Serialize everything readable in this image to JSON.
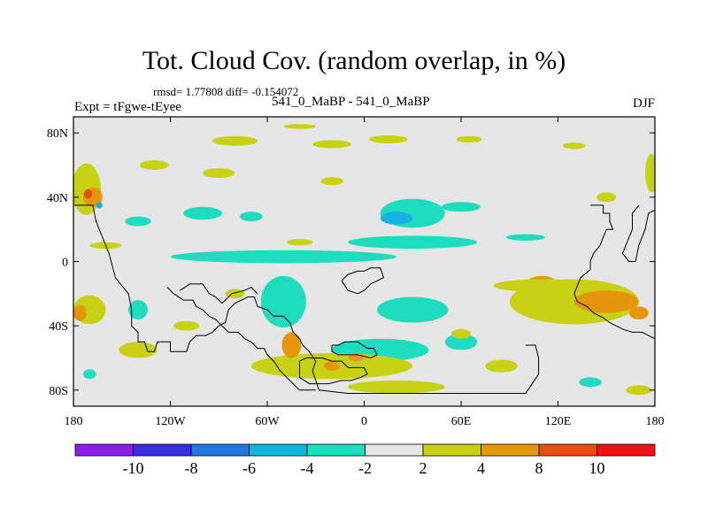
{
  "chart_data": {
    "type": "heatmap",
    "title": "Tot. Cloud Cov. (random overlap, in %)",
    "stats_text": "rmsd= 1.77808  diff= -0.154072",
    "left_label": "Expt = tFgwe-tEyee",
    "center_label": "541_0_MaBP - 541_0_MaBP",
    "right_label": "DJF",
    "x_axis": {
      "range": [
        -180,
        180
      ],
      "ticks": [
        {
          "value": -180,
          "label": "180"
        },
        {
          "value": -120,
          "label": "120W"
        },
        {
          "value": -60,
          "label": "60W"
        },
        {
          "value": 0,
          "label": "0"
        },
        {
          "value": 60,
          "label": "60E"
        },
        {
          "value": 120,
          "label": "120E"
        },
        {
          "value": 180,
          "label": "180"
        }
      ]
    },
    "y_axis": {
      "range": [
        -90,
        90
      ],
      "ticks": [
        {
          "value": 80,
          "label": "80N"
        },
        {
          "value": 40,
          "label": "40N"
        },
        {
          "value": 0,
          "label": "0"
        },
        {
          "value": -40,
          "label": "40S"
        },
        {
          "value": -80,
          "label": "80S"
        }
      ]
    },
    "colorbar": {
      "levels": [
        "-10",
        "-8",
        "-6",
        "-4",
        "-2",
        "2",
        "4",
        "8",
        "10"
      ],
      "colors": [
        "#8a1ee8",
        "#3a2ce0",
        "#1f78e0",
        "#14b2e0",
        "#1edcbe",
        "#e6e6e6",
        "#c8d214",
        "#e6960a",
        "#e6500a",
        "#e61414"
      ]
    },
    "background_color": "#e6e6e6",
    "regions": [
      {
        "name": "north-band-1",
        "color": "#c8d214",
        "cx": -80,
        "cy": 75,
        "rx": 14,
        "ry": 3
      },
      {
        "name": "north-band-2",
        "color": "#c8d214",
        "cx": -20,
        "cy": 73,
        "rx": 12,
        "ry": 2.5
      },
      {
        "name": "north-band-3",
        "color": "#c8d214",
        "cx": 15,
        "cy": 76,
        "rx": 12,
        "ry": 2.5
      },
      {
        "name": "north-band-4",
        "color": "#c8d214",
        "cx": 65,
        "cy": 76,
        "rx": 8,
        "ry": 2
      },
      {
        "name": "north-band-5",
        "color": "#c8d214",
        "cx": 130,
        "cy": 72,
        "rx": 7,
        "ry": 2
      },
      {
        "name": "north-band-6",
        "color": "#c8d214",
        "cx": -40,
        "cy": 84,
        "rx": 10,
        "ry": 1.5
      },
      {
        "name": "nw-pacific-yellow",
        "color": "#c8d214",
        "cx": -172,
        "cy": 45,
        "rx": 9,
        "ry": 16
      },
      {
        "name": "nw-pacific-orange",
        "color": "#e6960a",
        "cx": -168,
        "cy": 40,
        "rx": 6,
        "ry": 6
      },
      {
        "name": "nw-pacific-red",
        "color": "#e6500a",
        "cx": -171,
        "cy": 42,
        "rx": 2.5,
        "ry": 3
      },
      {
        "name": "nw-pacific-blue",
        "color": "#14b2e0",
        "cx": -164,
        "cy": 35,
        "rx": 2,
        "ry": 2
      },
      {
        "name": "far-right-yellow",
        "color": "#c8d214",
        "cx": 178,
        "cy": 55,
        "rx": 4,
        "ry": 12
      },
      {
        "name": "yellow-60n",
        "color": "#c8d214",
        "cx": -130,
        "cy": 60,
        "rx": 9,
        "ry": 3
      },
      {
        "name": "yellow-55n",
        "color": "#c8d214",
        "cx": -90,
        "cy": 55,
        "rx": 10,
        "ry": 3
      },
      {
        "name": "yellow-50n",
        "color": "#c8d214",
        "cx": -20,
        "cy": 50,
        "rx": 7,
        "ry": 2.5
      },
      {
        "name": "yellow-40n",
        "color": "#c8d214",
        "cx": 150,
        "cy": 40,
        "rx": 6,
        "ry": 3
      },
      {
        "name": "cyan-north-pacific-1",
        "color": "#1edcbe",
        "cx": -100,
        "cy": 30,
        "rx": 12,
        "ry": 4
      },
      {
        "name": "cyan-north-pacific-2",
        "color": "#1edcbe",
        "cx": -70,
        "cy": 28,
        "rx": 7,
        "ry": 3
      },
      {
        "name": "cyan-north-pacific-3",
        "color": "#1edcbe",
        "cx": -140,
        "cy": 25,
        "rx": 8,
        "ry": 3
      },
      {
        "name": "cyan-atlantic",
        "color": "#1edcbe",
        "cx": 30,
        "cy": 30,
        "rx": 20,
        "ry": 9
      },
      {
        "name": "blue-atlantic",
        "color": "#14b2e0",
        "cx": 20,
        "cy": 27,
        "rx": 10,
        "ry": 4
      },
      {
        "name": "cyan-atlantic-east",
        "color": "#1edcbe",
        "cx": 60,
        "cy": 34,
        "rx": 12,
        "ry": 3
      },
      {
        "name": "cyan-equator-1",
        "color": "#1edcbe",
        "cx": -50,
        "cy": 3,
        "rx": 70,
        "ry": 4
      },
      {
        "name": "cyan-equator-2",
        "color": "#1edcbe",
        "cx": 30,
        "cy": 12,
        "rx": 40,
        "ry": 4
      },
      {
        "name": "cyan-equator-3",
        "color": "#1edcbe",
        "cx": 100,
        "cy": 15,
        "rx": 12,
        "ry": 2
      },
      {
        "name": "yellow-equator-west",
        "color": "#c8d214",
        "cx": -160,
        "cy": 10,
        "rx": 10,
        "ry": 2
      },
      {
        "name": "yellow-equator-mid",
        "color": "#c8d214",
        "cx": -40,
        "cy": 12,
        "rx": 8,
        "ry": 2
      },
      {
        "name": "cyan-sa",
        "color": "#1edcbe",
        "cx": -50,
        "cy": -25,
        "rx": 14,
        "ry": 16
      },
      {
        "name": "cyan-safrica",
        "color": "#1edcbe",
        "cx": 30,
        "cy": -30,
        "rx": 22,
        "ry": 8
      },
      {
        "name": "cyan-south-atlantic",
        "color": "#1edcbe",
        "cx": 10,
        "cy": -55,
        "rx": 30,
        "ry": 7
      },
      {
        "name": "cyan-south-1",
        "color": "#1edcbe",
        "cx": -140,
        "cy": -30,
        "rx": 6,
        "ry": 6
      },
      {
        "name": "cyan-south-2",
        "color": "#1edcbe",
        "cx": 60,
        "cy": -50,
        "rx": 10,
        "ry": 5
      },
      {
        "name": "cyan-south-3",
        "color": "#1edcbe",
        "cx": 140,
        "cy": -75,
        "rx": 7,
        "ry": 3
      },
      {
        "name": "cyan-south-4",
        "color": "#1edcbe",
        "cx": -170,
        "cy": -70,
        "rx": 4,
        "ry": 3
      },
      {
        "name": "yellow-south-pacific",
        "color": "#c8d214",
        "cx": -140,
        "cy": -55,
        "rx": 12,
        "ry": 5
      },
      {
        "name": "yellow-south-ocean",
        "color": "#c8d214",
        "cx": -20,
        "cy": -65,
        "rx": 50,
        "ry": 8
      },
      {
        "name": "orange-south-ocean-1",
        "color": "#e6960a",
        "cx": -45,
        "cy": -52,
        "rx": 6,
        "ry": 8
      },
      {
        "name": "orange-south-ocean-2",
        "color": "#e6960a",
        "cx": -20,
        "cy": -65,
        "rx": 5,
        "ry": 3
      },
      {
        "name": "orange-south-ocean-3",
        "color": "#e6960a",
        "cx": -5,
        "cy": -60,
        "rx": 5,
        "ry": 2
      },
      {
        "name": "yellow-far-south",
        "color": "#c8d214",
        "cx": 20,
        "cy": -78,
        "rx": 30,
        "ry": 4
      },
      {
        "name": "yellow-sw-edge",
        "color": "#c8d214",
        "cx": -170,
        "cy": -30,
        "rx": 10,
        "ry": 9
      },
      {
        "name": "orange-sw-edge",
        "color": "#e6960a",
        "cx": -176,
        "cy": -32,
        "rx": 4,
        "ry": 5
      },
      {
        "name": "yellow-se-indian",
        "color": "#c8d214",
        "cx": 130,
        "cy": -25,
        "rx": 40,
        "ry": 14
      },
      {
        "name": "orange-se-indian-1",
        "color": "#e6960a",
        "cx": 150,
        "cy": -25,
        "rx": 20,
        "ry": 7
      },
      {
        "name": "orange-se-indian-2",
        "color": "#e6960a",
        "cx": 110,
        "cy": -12,
        "rx": 8,
        "ry": 3
      },
      {
        "name": "orange-se-indian-3",
        "color": "#e6960a",
        "cx": 170,
        "cy": -32,
        "rx": 6,
        "ry": 4
      },
      {
        "name": "yellow-east-band",
        "color": "#c8d214",
        "cx": 110,
        "cy": -15,
        "rx": 30,
        "ry": 4
      },
      {
        "name": "yellow-bottom-right",
        "color": "#c8d214",
        "cx": 170,
        "cy": -80,
        "rx": 8,
        "ry": 3
      },
      {
        "name": "yellow-indian-1",
        "color": "#c8d214",
        "cx": 85,
        "cy": -65,
        "rx": 10,
        "ry": 4
      },
      {
        "name": "yellow-indian-2",
        "color": "#c8d214",
        "cx": 60,
        "cy": -45,
        "rx": 6,
        "ry": 3
      },
      {
        "name": "yellow-pacific-south-1",
        "color": "#c8d214",
        "cx": -110,
        "cy": -40,
        "rx": 8,
        "ry": 3
      },
      {
        "name": "yellow-pacific-south-2",
        "color": "#c8d214",
        "cx": -80,
        "cy": -20,
        "rx": 6,
        "ry": 3
      }
    ],
    "coastlines": [
      {
        "name": "north-america-coast",
        "points": [
          [
            -180,
            35
          ],
          [
            -168,
            35
          ],
          [
            -166,
            25
          ],
          [
            -160,
            10
          ],
          [
            -158,
            5
          ],
          [
            -154,
            -10
          ],
          [
            -146,
            -20
          ],
          [
            -144,
            -30
          ],
          [
            -144,
            -40
          ],
          [
            -140,
            -44
          ],
          [
            -140,
            -50
          ],
          [
            -136,
            -50
          ],
          [
            -134,
            -56
          ],
          [
            -130,
            -56
          ],
          [
            -128,
            -50
          ],
          [
            -120,
            -50
          ],
          [
            -120,
            -56
          ],
          [
            -110,
            -56
          ],
          [
            -108,
            -50
          ],
          [
            -104,
            -46
          ],
          [
            -98,
            -46
          ],
          [
            -94,
            -44
          ],
          [
            -90,
            -40
          ],
          [
            -86,
            -38
          ],
          [
            -84,
            -30
          ],
          [
            -80,
            -26
          ],
          [
            -76,
            -24
          ],
          [
            -72,
            -22
          ],
          [
            -68,
            -22
          ],
          [
            -66,
            -28
          ],
          [
            -60,
            -30
          ],
          [
            -56,
            -34
          ],
          [
            -50,
            -34
          ],
          [
            -46,
            -38
          ],
          [
            -44,
            -44
          ],
          [
            -40,
            -48
          ],
          [
            -38,
            -52
          ]
        ]
      },
      {
        "name": "south-america-coast",
        "points": [
          [
            -38,
            -52
          ],
          [
            -34,
            -56
          ],
          [
            -30,
            -62
          ],
          [
            -32,
            -68
          ],
          [
            -30,
            -74
          ],
          [
            -28,
            -80
          ],
          [
            -10,
            -82
          ],
          [
            40,
            -82
          ],
          [
            80,
            -82
          ],
          [
            100,
            -82
          ],
          [
            108,
            -70
          ],
          [
            108,
            -60
          ],
          [
            106,
            -52
          ],
          [
            100,
            -52
          ]
        ]
      },
      {
        "name": "pacific-island-chain",
        "points": [
          [
            -122,
            -16
          ],
          [
            -118,
            -20
          ],
          [
            -112,
            -24
          ],
          [
            -106,
            -24
          ],
          [
            -104,
            -28
          ],
          [
            -100,
            -30
          ],
          [
            -96,
            -34
          ],
          [
            -92,
            -36
          ],
          [
            -88,
            -40
          ],
          [
            -84,
            -44
          ],
          [
            -78,
            -44
          ],
          [
            -74,
            -48
          ],
          [
            -70,
            -50
          ],
          [
            -66,
            -54
          ],
          [
            -62,
            -54
          ],
          [
            -60,
            -58
          ],
          [
            -56,
            -62
          ],
          [
            -52,
            -68
          ],
          [
            -48,
            -72
          ],
          [
            -44,
            -76
          ],
          [
            -40,
            -80
          ],
          [
            -30,
            -80
          ]
        ]
      },
      {
        "name": "inner-continent",
        "points": [
          [
            -114,
            -18
          ],
          [
            -108,
            -14
          ],
          [
            -100,
            -14
          ],
          [
            -96,
            -20
          ],
          [
            -92,
            -22
          ],
          [
            -88,
            -26
          ],
          [
            -82,
            -20
          ],
          [
            -74,
            -18
          ],
          [
            -70,
            -16
          ],
          [
            -66,
            -20
          ]
        ]
      },
      {
        "name": "antarctic-island",
        "points": [
          [
            -40,
            -62
          ],
          [
            -36,
            -60
          ],
          [
            -26,
            -60
          ],
          [
            -20,
            -62
          ],
          [
            -14,
            -62
          ],
          [
            -10,
            -66
          ],
          [
            0,
            -66
          ],
          [
            2,
            -70
          ],
          [
            -2,
            -72
          ],
          [
            -8,
            -74
          ],
          [
            -14,
            -74
          ],
          [
            -22,
            -76
          ],
          [
            -34,
            -76
          ],
          [
            -40,
            -72
          ],
          [
            -40,
            -62
          ]
        ]
      },
      {
        "name": "small-island-east",
        "points": [
          [
            -20,
            -52
          ],
          [
            -16,
            -52
          ],
          [
            -12,
            -50
          ],
          [
            -4,
            -50
          ],
          [
            2,
            -54
          ],
          [
            6,
            -54
          ],
          [
            8,
            -58
          ],
          [
            4,
            -60
          ],
          [
            -4,
            -58
          ],
          [
            -10,
            -58
          ],
          [
            -16,
            -58
          ],
          [
            -20,
            -56
          ],
          [
            -20,
            -52
          ]
        ]
      },
      {
        "name": "africa-block",
        "points": [
          [
            -14,
            -12
          ],
          [
            -10,
            -8
          ],
          [
            -4,
            -6
          ],
          [
            0,
            -6
          ],
          [
            4,
            -4
          ],
          [
            10,
            -4
          ],
          [
            12,
            -10
          ],
          [
            8,
            -12
          ],
          [
            4,
            -14
          ],
          [
            0,
            -18
          ],
          [
            -4,
            -20
          ],
          [
            -10,
            -18
          ],
          [
            -14,
            -12
          ]
        ]
      },
      {
        "name": "eastern-coast",
        "points": [
          [
            140,
            35
          ],
          [
            148,
            35
          ],
          [
            148,
            30
          ],
          [
            152,
            30
          ],
          [
            152,
            25
          ],
          [
            154,
            20
          ],
          [
            150,
            20
          ],
          [
            148,
            15
          ],
          [
            146,
            10
          ],
          [
            142,
            5
          ],
          [
            140,
            0
          ],
          [
            140,
            -5
          ],
          [
            134,
            -10
          ],
          [
            132,
            -15
          ],
          [
            130,
            -20
          ],
          [
            132,
            -25
          ],
          [
            138,
            -28
          ],
          [
            142,
            -32
          ],
          [
            148,
            -35
          ],
          [
            152,
            -38
          ],
          [
            156,
            -40
          ],
          [
            160,
            -42
          ],
          [
            166,
            -44
          ],
          [
            172,
            -44
          ],
          [
            180,
            -48
          ]
        ]
      },
      {
        "name": "east-vertical-strip",
        "points": [
          [
            170,
            35
          ],
          [
            166,
            30
          ],
          [
            166,
            20
          ],
          [
            162,
            10
          ],
          [
            160,
            5
          ],
          [
            164,
            0
          ],
          [
            168,
            0
          ],
          [
            170,
            10
          ],
          [
            174,
            20
          ],
          [
            176,
            30
          ],
          [
            180,
            32
          ]
        ]
      }
    ]
  }
}
